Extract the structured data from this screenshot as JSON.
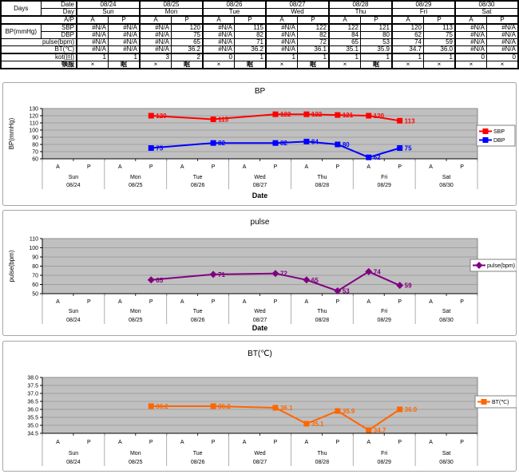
{
  "table": {
    "row_labels": {
      "days": "Days",
      "date": "Date",
      "day": "Day",
      "ap": "A/P",
      "bp": "BP(mmHg)",
      "sbp": "SBP",
      "dbp": "DBP",
      "pulse": "pulse(bpm)",
      "bt": "BT(℃)",
      "kot": "kot(回)",
      "tonpuku": "頓服"
    },
    "dates": [
      "08/24",
      "08/25",
      "08/26",
      "08/27",
      "08/28",
      "08/29",
      "08/30"
    ],
    "days": [
      "Sun",
      "Mon",
      "Tue",
      "Wed",
      "Thu",
      "Fri",
      "Sat"
    ],
    "ap": [
      "A",
      "P"
    ],
    "sbp": [
      "#N/A",
      "#N/A",
      "#N/A",
      "120",
      "#N/A",
      "115",
      "#N/A",
      "122",
      "122",
      "121",
      "120",
      "113",
      "#N/A",
      "#N/A"
    ],
    "dbp": [
      "#N/A",
      "#N/A",
      "#N/A",
      "75",
      "#N/A",
      "82",
      "#N/A",
      "82",
      "84",
      "80",
      "62",
      "75",
      "#N/A",
      "#N/A"
    ],
    "pulse": [
      "#N/A",
      "#N/A",
      "#N/A",
      "65",
      "#N/A",
      "71",
      "#N/A",
      "72",
      "65",
      "53",
      "74",
      "59",
      "#N/A",
      "#N/A"
    ],
    "bt": [
      "#N/A",
      "#N/A",
      "#N/A",
      "36.2",
      "#N/A",
      "36.2",
      "#N/A",
      "36.1",
      "35.1",
      "35.9",
      "34.7",
      "36.0",
      "#N/A",
      "#N/A"
    ],
    "kot": [
      "1",
      "1",
      "3",
      "2",
      "0",
      "1",
      "1",
      "1",
      "1",
      "1",
      "1",
      "1",
      "0",
      "0"
    ],
    "tonpuku": [
      "×",
      "眠",
      "×",
      "眠",
      "×",
      "眠",
      "×",
      "眠",
      "×",
      "眠",
      "×",
      "×",
      "×",
      "×"
    ]
  },
  "chart_data": [
    {
      "type": "line",
      "title": "BP",
      "ylabel": "BP(mmHg)",
      "xlabel": "Date",
      "ylim": [
        60,
        130
      ],
      "y_ticks": [
        "60",
        "70",
        "80",
        "90",
        "100",
        "110",
        "120",
        "130"
      ],
      "grid": true,
      "plot_bg": "#C0C0C0",
      "legend_position": "right",
      "x_ap": [
        "A",
        "P",
        "A",
        "P",
        "A",
        "P",
        "A",
        "P",
        "A",
        "P",
        "A",
        "P",
        "A",
        "P"
      ],
      "categories_day": [
        "Sun",
        "Mon",
        "Tue",
        "Wed",
        "Thu",
        "Fri",
        "Sat"
      ],
      "categories_date": [
        "08/24",
        "08/25",
        "08/26",
        "08/27",
        "08/28",
        "08/29",
        "08/30"
      ],
      "series": [
        {
          "name": "SBP",
          "color": "#FF0000",
          "marker": "square",
          "values": [
            null,
            null,
            null,
            120,
            null,
            115,
            null,
            122,
            122,
            121,
            120,
            113,
            null,
            null
          ],
          "labels": [
            null,
            null,
            null,
            "120",
            null,
            "115",
            null,
            "122",
            "122",
            "121",
            "120",
            "113",
            null,
            null
          ]
        },
        {
          "name": "DBP",
          "color": "#0000FF",
          "marker": "square",
          "values": [
            null,
            null,
            null,
            75,
            null,
            82,
            null,
            82,
            84,
            80,
            62,
            75,
            null,
            null
          ],
          "labels": [
            null,
            null,
            null,
            "75",
            null,
            "82",
            null,
            "82",
            "84",
            "80",
            "62",
            "75",
            null,
            null
          ]
        }
      ]
    },
    {
      "type": "line",
      "title": "pulse",
      "ylabel": "pulse(bpm)",
      "xlabel": "Date",
      "ylim": [
        50,
        110
      ],
      "y_ticks": [
        "50",
        "60",
        "70",
        "80",
        "90",
        "100",
        "110"
      ],
      "grid": true,
      "plot_bg": "#C0C0C0",
      "legend_position": "right",
      "x_ap": [
        "A",
        "P",
        "A",
        "P",
        "A",
        "P",
        "A",
        "P",
        "A",
        "P",
        "A",
        "P",
        "A",
        "P"
      ],
      "categories_day": [
        "Sun",
        "Mon",
        "Tue",
        "Wed",
        "Thu",
        "Fri",
        "Sat"
      ],
      "categories_date": [
        "08/24",
        "08/25",
        "08/26",
        "08/27",
        "08/28",
        "08/29",
        "08/30"
      ],
      "series": [
        {
          "name": "pulse(bpm)",
          "color": "#800080",
          "marker": "diamond",
          "values": [
            null,
            null,
            null,
            65,
            null,
            71,
            null,
            72,
            65,
            53,
            74,
            59,
            null,
            null
          ],
          "labels": [
            null,
            null,
            null,
            "65",
            null,
            "71",
            null,
            "72",
            "65",
            "53",
            "74",
            "59",
            null,
            null
          ]
        }
      ]
    },
    {
      "type": "line",
      "title": "BT(℃)",
      "ylabel": "",
      "xlabel": "",
      "ylim": [
        34.5,
        38.0
      ],
      "y_ticks": [
        "34.5",
        "35.0",
        "35.5",
        "36.0",
        "36.5",
        "37.0",
        "37.5",
        "38.0"
      ],
      "grid": true,
      "plot_bg": "#C0C0C0",
      "legend_position": "right",
      "x_ap": [
        "A",
        "P",
        "A",
        "P",
        "A",
        "P",
        "A",
        "P",
        "A",
        "P",
        "A",
        "P",
        "A",
        "P"
      ],
      "categories_day": [
        "Sun",
        "Mon",
        "Tue",
        "Wed",
        "Thu",
        "Fri",
        "Sat"
      ],
      "categories_date": [
        "08/24",
        "08/25",
        "08/26",
        "08/27",
        "08/28",
        "08/29",
        "08/30"
      ],
      "series": [
        {
          "name": "BT(℃)",
          "color": "#FF6600",
          "marker": "square",
          "values": [
            null,
            null,
            null,
            36.2,
            null,
            36.2,
            null,
            36.1,
            35.1,
            35.9,
            34.7,
            36.0,
            null,
            null
          ],
          "labels": [
            null,
            null,
            null,
            "36.2",
            null,
            "36.2",
            null,
            "36.1",
            "35.1",
            "35.9",
            "34.7",
            "36.0",
            null,
            null
          ]
        }
      ]
    }
  ]
}
